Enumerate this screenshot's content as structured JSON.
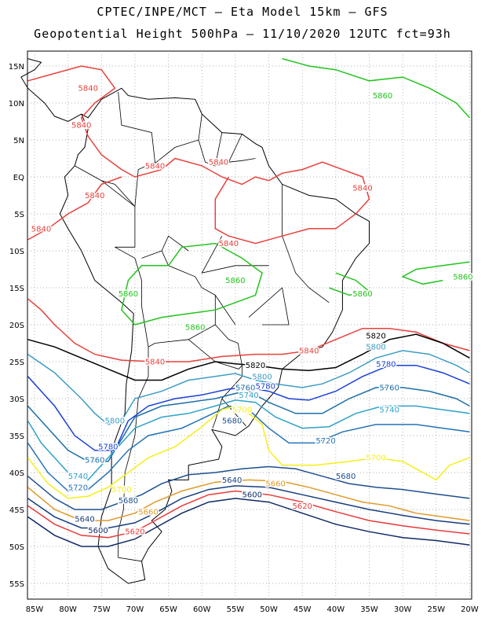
{
  "title": {
    "line1": "CPTEC/INPE/MCT –  Eta Model 15km – GFS",
    "line2": "Geopotential Height 500hPa – 11/10/2020 12UTC fct=93h"
  },
  "map_extent": {
    "lon": [
      -86,
      -20
    ],
    "lat": [
      -58,
      16
    ]
  },
  "lat_labels": [
    "15N",
    "10N",
    "5N",
    "EQ",
    "5S",
    "10S",
    "15S",
    "20S",
    "25S",
    "30S",
    "35S",
    "40S",
    "45S",
    "50S",
    "55S"
  ],
  "lon_labels": [
    "85W",
    "80W",
    "75W",
    "70W",
    "65W",
    "60W",
    "55W",
    "50W",
    "45W",
    "40W",
    "35W",
    "30W",
    "25W",
    "20W"
  ],
  "colors": {
    "c5840": "#e8413c",
    "c5860": "#22c41d",
    "c5820": "#000000",
    "c5800": "#3d9dc4",
    "c5780": "#1a3fd8",
    "c5760": "#1c6fa8",
    "c5740": "#2ea2c8",
    "c5720": "#2673b5",
    "c5700": "#f5ef17",
    "c5680": "#1e4f8f",
    "c5660": "#e09a2a",
    "c5640": "#183e7e",
    "c5620": "#e83b3b",
    "c5600": "#102a66"
  },
  "contour_labels": [
    {
      "text": "5840",
      "color": "#e8413c",
      "lon": -77,
      "lat": 12
    },
    {
      "text": "5840",
      "color": "#e8413c",
      "lon": -78,
      "lat": 7
    },
    {
      "text": "5840",
      "color": "#e8413c",
      "lon": -67,
      "lat": 1.5
    },
    {
      "text": "5840",
      "color": "#e8413c",
      "lon": -57.5,
      "lat": 2
    },
    {
      "text": "5840",
      "color": "#e8413c",
      "lon": -36,
      "lat": -1.5
    },
    {
      "text": "5840",
      "color": "#e8413c",
      "lon": -76,
      "lat": -2.5
    },
    {
      "text": "5840",
      "color": "#e8413c",
      "lon": -84,
      "lat": -7
    },
    {
      "text": "5840",
      "color": "#e8413c",
      "lon": -56,
      "lat": -9
    },
    {
      "text": "5840",
      "color": "#e8413c",
      "lon": -44,
      "lat": -23.5
    },
    {
      "text": "5840",
      "color": "#e8413c",
      "lon": -67,
      "lat": -25
    },
    {
      "text": "5860",
      "color": "#22c41d",
      "lon": -33,
      "lat": 11
    },
    {
      "text": "5860",
      "color": "#22c41d",
      "lon": -21,
      "lat": -13.5
    },
    {
      "text": "5860",
      "color": "#22c41d",
      "lon": -55,
      "lat": -14
    },
    {
      "text": "5860",
      "color": "#22c41d",
      "lon": -71,
      "lat": -15.8
    },
    {
      "text": "5860",
      "color": "#22c41d",
      "lon": -36,
      "lat": -15.8
    },
    {
      "text": "5860",
      "color": "#22c41d",
      "lon": -61,
      "lat": -20.3
    },
    {
      "text": "5820",
      "color": "#000000",
      "lon": -34,
      "lat": -21.5
    },
    {
      "text": "5820",
      "color": "#000000",
      "lon": -52,
      "lat": -25.5
    },
    {
      "text": "5800",
      "color": "#3d9dc4",
      "lon": -34,
      "lat": -23
    },
    {
      "text": "5800",
      "color": "#3d9dc4",
      "lon": -51,
      "lat": -27
    },
    {
      "text": "5800",
      "color": "#3d9dc4",
      "lon": -73,
      "lat": -33
    },
    {
      "text": "5780",
      "color": "#1a3fd8",
      "lon": -32.5,
      "lat": -25.3
    },
    {
      "text": "5780",
      "color": "#1a3fd8",
      "lon": -50.5,
      "lat": -28.3
    },
    {
      "text": "5780",
      "color": "#1a3fd8",
      "lon": -74,
      "lat": -36.5
    },
    {
      "text": "5760",
      "color": "#1c6fa8",
      "lon": -32,
      "lat": -28.5
    },
    {
      "text": "5760",
      "color": "#1c6fa8",
      "lon": -53.5,
      "lat": -28.5
    },
    {
      "text": "5760",
      "color": "#1c6fa8",
      "lon": -76,
      "lat": -38.3
    },
    {
      "text": "5740",
      "color": "#2ea2c8",
      "lon": -32,
      "lat": -31.5
    },
    {
      "text": "5740",
      "color": "#2ea2c8",
      "lon": -53,
      "lat": -29.5
    },
    {
      "text": "5740",
      "color": "#2ea2c8",
      "lon": -78.5,
      "lat": -40.5
    },
    {
      "text": "5720",
      "color": "#2673b5",
      "lon": -41.5,
      "lat": -35.7
    },
    {
      "text": "5720",
      "color": "#2673b5",
      "lon": -78.5,
      "lat": -42
    },
    {
      "text": "5700",
      "color": "#f5ef17",
      "lon": -54,
      "lat": -31.5
    },
    {
      "text": "5700",
      "color": "#f5ef17",
      "lon": -34,
      "lat": -38
    },
    {
      "text": "5700",
      "color": "#f5ef17",
      "lon": -72,
      "lat": -42.3
    },
    {
      "text": "5680",
      "color": "#1e4f8f",
      "lon": -55.5,
      "lat": -33
    },
    {
      "text": "5680",
      "color": "#1e4f8f",
      "lon": -38.5,
      "lat": -40.5
    },
    {
      "text": "5680",
      "color": "#1e4f8f",
      "lon": -71,
      "lat": -43.8
    },
    {
      "text": "5660",
      "color": "#e09a2a",
      "lon": -49,
      "lat": -41.5
    },
    {
      "text": "5660",
      "color": "#e09a2a",
      "lon": -68,
      "lat": -45.3
    },
    {
      "text": "5640",
      "color": "#183e7e",
      "lon": -55.5,
      "lat": -41
    },
    {
      "text": "5640",
      "color": "#183e7e",
      "lon": -77.5,
      "lat": -46.3
    },
    {
      "text": "5620",
      "color": "#e83b3b",
      "lon": -45,
      "lat": -44.5
    },
    {
      "text": "5620",
      "color": "#e83b3b",
      "lon": -70,
      "lat": -48
    },
    {
      "text": "5600",
      "color": "#102a66",
      "lon": -52.5,
      "lat": -43
    },
    {
      "text": "5600",
      "color": "#102a66",
      "lon": -75.5,
      "lat": -47.8
    }
  ]
}
